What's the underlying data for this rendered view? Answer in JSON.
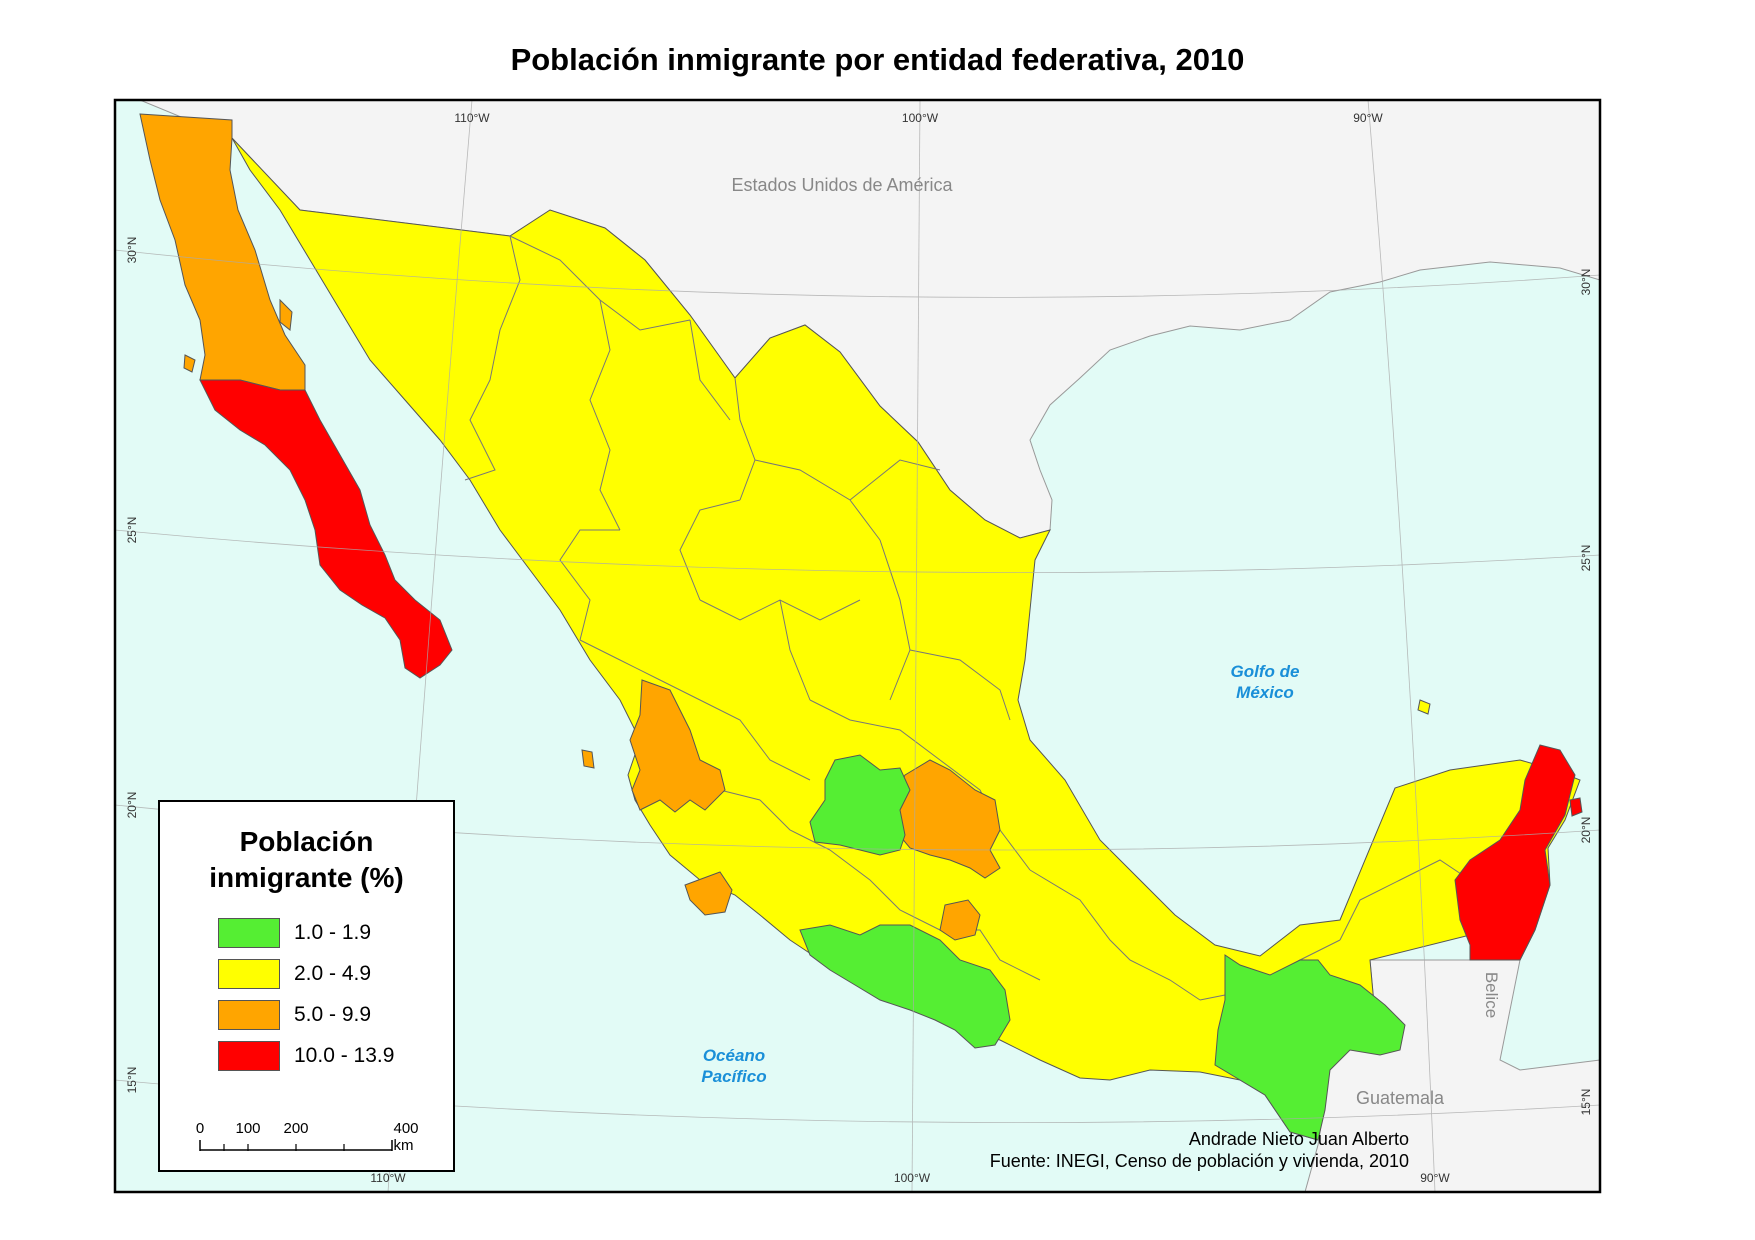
{
  "title": "Población inmigrante por entidad federativa, 2010",
  "map": {
    "country_label": "Estados Unidos de América",
    "gulf_label": [
      "Golfo de",
      "México"
    ],
    "ocean_label": [
      "Océano",
      "Pacífico"
    ],
    "belize_label": "Belice",
    "guatemala_label": "Guatemala",
    "lon_top": [
      "110°W",
      "100°W",
      "90°W"
    ],
    "lon_bottom": [
      "110°W",
      "100°W",
      "90°W"
    ],
    "lat_left": [
      "30°N",
      "25°N",
      "20°N",
      "15°N"
    ],
    "lat_right": [
      "30°N",
      "25°N",
      "20°N",
      "15°N"
    ],
    "colors": {
      "ocean": "#e2fbf6",
      "foreign_land": "#f4f4f4",
      "class_1": "#55ee33",
      "class_2": "#ffff00",
      "class_3": "#ffa500",
      "class_4": "#ff0000"
    }
  },
  "legend": {
    "title_line1": "Población",
    "title_line2": "inmigrante (%)",
    "items": [
      {
        "label": "1.0 - 1.9",
        "color": "#55ee33"
      },
      {
        "label": "2.0 - 4.9",
        "color": "#ffff00"
      },
      {
        "label": "5.0 - 9.9",
        "color": "#ffa500"
      },
      {
        "label": "10.0 - 13.9",
        "color": "#ff0000"
      }
    ],
    "scale": {
      "t0": "0",
      "t1": "100",
      "t2": "200",
      "t3": "400 km"
    }
  },
  "credit": {
    "author": "Andrade Nieto Juan Alberto",
    "source": "Fuente: INEGI, Censo de población y vivienda, 2010"
  }
}
